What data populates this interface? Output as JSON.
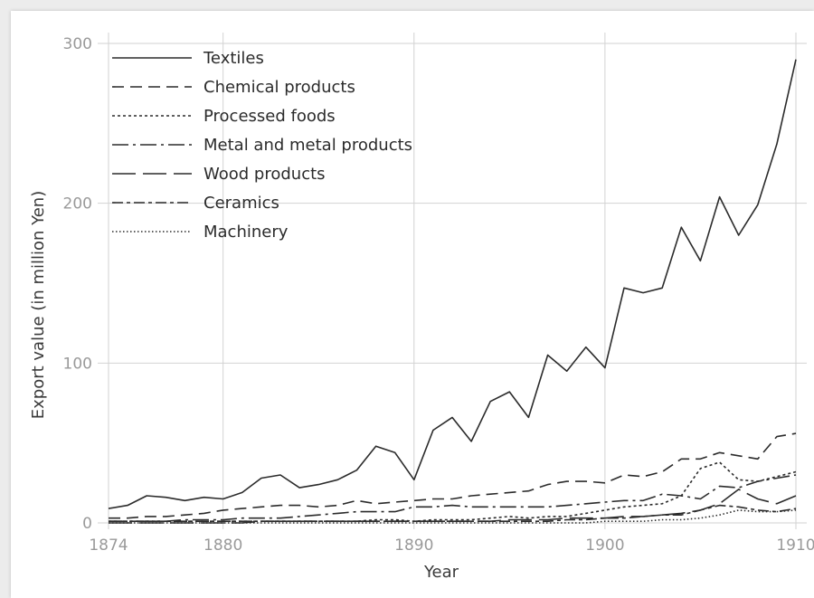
{
  "chart_data": {
    "type": "line",
    "title": "",
    "xlabel": "Year",
    "ylabel": "Export value (in million Yen)",
    "xlim": [
      1874,
      1910
    ],
    "ylim": [
      0,
      300
    ],
    "x_ticks": [
      "1874",
      "1880",
      "1890",
      "1900",
      "1910"
    ],
    "y_ticks": [
      "0",
      "100",
      "200",
      "300"
    ],
    "grid": true,
    "legend_position": "top-left",
    "x": [
      1874,
      1875,
      1876,
      1877,
      1878,
      1879,
      1880,
      1881,
      1882,
      1883,
      1884,
      1885,
      1886,
      1887,
      1888,
      1889,
      1890,
      1891,
      1892,
      1893,
      1894,
      1895,
      1896,
      1897,
      1898,
      1899,
      1900,
      1901,
      1902,
      1903,
      1904,
      1905,
      1906,
      1907,
      1908,
      1909,
      1910
    ],
    "series": [
      {
        "name": "Textiles",
        "dash": "solid",
        "values": [
          9,
          11,
          17,
          16,
          14,
          16,
          15,
          19,
          28,
          30,
          22,
          24,
          27,
          33,
          48,
          44,
          27,
          58,
          66,
          51,
          76,
          82,
          66,
          105,
          95,
          110,
          97,
          147,
          144,
          147,
          185,
          164,
          204,
          180,
          199,
          237,
          290
        ]
      },
      {
        "name": "Chemical products",
        "dash": "dashed",
        "values": [
          3,
          3,
          4,
          4,
          5,
          6,
          8,
          9,
          10,
          11,
          11,
          10,
          11,
          14,
          12,
          13,
          14,
          15,
          15,
          17,
          18,
          19,
          20,
          24,
          26,
          26,
          25,
          30,
          29,
          32,
          40,
          40,
          44,
          42,
          40,
          54,
          56
        ]
      },
      {
        "name": "Processed foods",
        "dash": "dotted",
        "values": [
          1,
          1,
          1,
          1,
          1,
          1,
          1,
          1,
          1,
          1,
          1,
          1,
          1,
          1,
          2,
          2,
          1,
          2,
          2,
          2,
          3,
          4,
          3,
          4,
          4,
          6,
          8,
          10,
          11,
          12,
          17,
          34,
          38,
          27,
          26,
          29,
          32
        ]
      },
      {
        "name": "Metal and metal products",
        "dash": "dashdot",
        "values": [
          1,
          1,
          1,
          1,
          2,
          2,
          2,
          3,
          3,
          3,
          4,
          5,
          6,
          7,
          7,
          7,
          10,
          10,
          11,
          10,
          10,
          10,
          10,
          10,
          11,
          12,
          13,
          14,
          14,
          18,
          17,
          15,
          23,
          22,
          26,
          28,
          30
        ]
      },
      {
        "name": "Wood products",
        "dash": "longdash",
        "values": [
          0,
          0,
          0,
          0,
          0,
          0,
          0,
          0,
          1,
          1,
          1,
          1,
          1,
          1,
          1,
          1,
          1,
          1,
          1,
          1,
          1,
          2,
          2,
          2,
          3,
          3,
          3,
          4,
          4,
          5,
          6,
          8,
          12,
          21,
          15,
          12,
          17
        ]
      },
      {
        "name": "Ceramics",
        "dash": "twodash",
        "values": [
          1,
          1,
          1,
          1,
          1,
          1,
          1,
          1,
          1,
          1,
          1,
          1,
          1,
          1,
          1,
          1,
          1,
          1,
          1,
          1,
          1,
          1,
          1,
          1,
          2,
          2,
          3,
          3,
          4,
          5,
          5,
          8,
          11,
          10,
          8,
          7,
          9
        ]
      },
      {
        "name": "Machinery",
        "dash": "finedot",
        "values": [
          0,
          0,
          0,
          0,
          0,
          0,
          0,
          0,
          0,
          0,
          0,
          0,
          0,
          0,
          0,
          0,
          0,
          0,
          0,
          0,
          0,
          0,
          0,
          0,
          0,
          0,
          1,
          1,
          1,
          2,
          2,
          3,
          5,
          8,
          7,
          7,
          8
        ]
      }
    ]
  },
  "colors": {
    "line": "#2b2b2b",
    "grid": "#d2d2d2",
    "tick": "#9a9a9a"
  }
}
